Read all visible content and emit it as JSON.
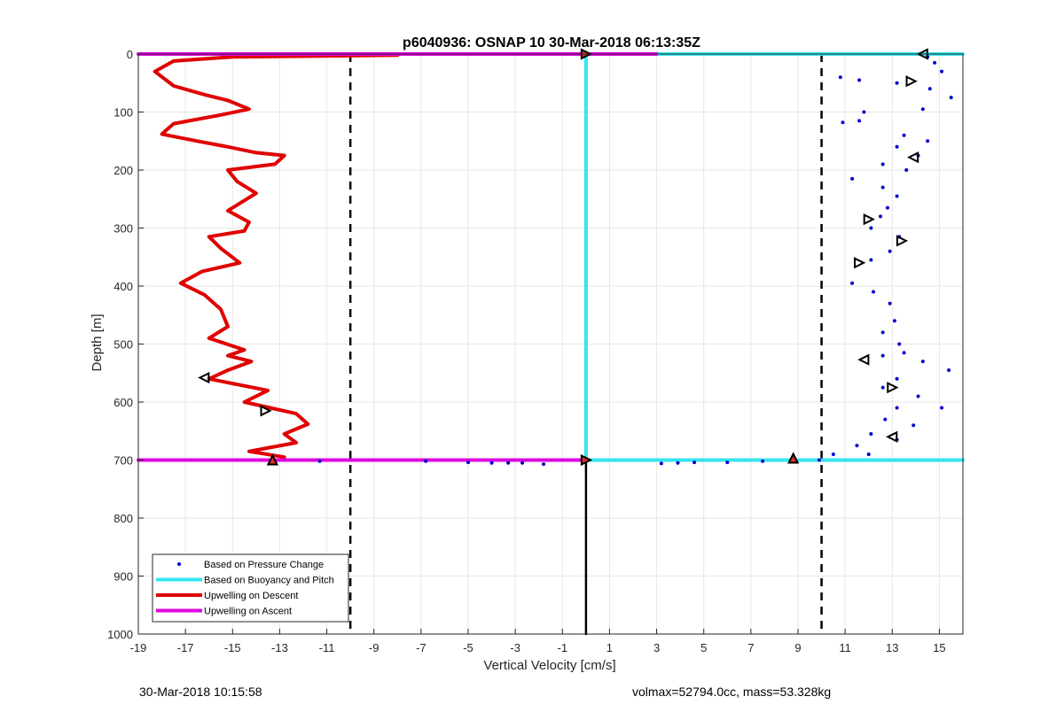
{
  "footer": {
    "timestamp": "30-Mar-2018 10:15:58",
    "stats": "volmax=52794.0cc, mass=53.328kg"
  },
  "chart_data": {
    "type": "scatter",
    "title": "p6040936: OSNAP 10 30-Mar-2018 06:13:35Z",
    "xlabel": "Vertical Velocity [cm/s]",
    "ylabel": "Depth [m]",
    "xlim": [
      -19,
      16
    ],
    "ylim": [
      0,
      1000
    ],
    "y_reversed": true,
    "grid": true,
    "xticks": [
      -19,
      -17,
      -15,
      -13,
      -11,
      -9,
      -7,
      -5,
      -3,
      -1,
      1,
      3,
      5,
      7,
      9,
      11,
      13,
      15
    ],
    "yticks": [
      0,
      100,
      200,
      300,
      400,
      500,
      600,
      700,
      800,
      900,
      1000
    ],
    "legend_position": "bottom-left",
    "legend": [
      {
        "label": "Based on Pressure Change",
        "style": "dot",
        "color": "#0000d0"
      },
      {
        "label": "Based on Buoyancy and Pitch",
        "style": "line",
        "color": "#33e5f0"
      },
      {
        "label": "Upwelling on Descent",
        "style": "line",
        "color": "#e00000"
      },
      {
        "label": "Upwelling on Ascent",
        "style": "line",
        "color": "#e000e0"
      }
    ],
    "reference_lines": [
      {
        "axis": "x",
        "value": -10,
        "style": "dashed",
        "color": "#000000"
      },
      {
        "axis": "x",
        "value": 10,
        "style": "dashed",
        "color": "#000000"
      }
    ],
    "series": [
      {
        "kind": "line",
        "color": "#e00000",
        "points": [
          [
            -8,
            2
          ],
          [
            -15,
            5
          ],
          [
            -17.5,
            12
          ],
          [
            -18.3,
            30
          ],
          [
            -17.5,
            55
          ],
          [
            -16.2,
            70
          ],
          [
            -15.2,
            80
          ],
          [
            -14.3,
            95
          ],
          [
            -15.5,
            105
          ],
          [
            -17.5,
            120
          ],
          [
            -18,
            138
          ],
          [
            -16.5,
            150
          ],
          [
            -15.2,
            160
          ],
          [
            -14,
            170
          ],
          [
            -12.8,
            175
          ],
          [
            -13.2,
            190
          ],
          [
            -15.2,
            200
          ],
          [
            -14.8,
            220
          ],
          [
            -14,
            240
          ],
          [
            -15.2,
            270
          ],
          [
            -14.3,
            290
          ],
          [
            -14.5,
            305
          ],
          [
            -16,
            315
          ],
          [
            -15.5,
            335
          ],
          [
            -14.7,
            360
          ],
          [
            -16.3,
            375
          ],
          [
            -17.2,
            395
          ],
          [
            -16.2,
            415
          ],
          [
            -15.5,
            440
          ],
          [
            -15.2,
            470
          ],
          [
            -16,
            490
          ],
          [
            -14.5,
            510
          ],
          [
            -15.2,
            520
          ],
          [
            -14.2,
            530
          ],
          [
            -15.2,
            545
          ],
          [
            -16,
            560
          ],
          [
            -13.5,
            580
          ],
          [
            -14.5,
            600
          ],
          [
            -12.3,
            620
          ],
          [
            -11.8,
            638
          ],
          [
            -12.8,
            655
          ],
          [
            -12.3,
            670
          ],
          [
            -14.3,
            685
          ],
          [
            -12.8,
            695
          ],
          [
            -13,
            700
          ]
        ]
      },
      {
        "kind": "line",
        "color": "#e000e0",
        "points": [
          [
            -19,
            0
          ],
          [
            3.1,
            0
          ]
        ]
      },
      {
        "kind": "line",
        "color": "#e000e0",
        "points": [
          [
            -19,
            700
          ],
          [
            0,
            700
          ]
        ]
      },
      {
        "kind": "line",
        "color": "#33e5f0",
        "points": [
          [
            3.1,
            0
          ],
          [
            16,
            0
          ]
        ]
      },
      {
        "kind": "line",
        "color": "#33e5f0",
        "points": [
          [
            0,
            700
          ],
          [
            16,
            700
          ]
        ]
      },
      {
        "kind": "line",
        "color": "#33e5f0",
        "points": [
          [
            0,
            0
          ],
          [
            0,
            700
          ]
        ]
      },
      {
        "kind": "line",
        "color": "#000000",
        "points": [
          [
            0,
            700
          ],
          [
            0,
            1000
          ]
        ]
      },
      {
        "kind": "points",
        "color": "#0000d0",
        "points": [
          [
            14.5,
            5
          ],
          [
            14.8,
            15
          ],
          [
            15.1,
            30
          ],
          [
            10.8,
            40
          ],
          [
            11.6,
            45
          ],
          [
            13.2,
            50
          ],
          [
            14.6,
            60
          ],
          [
            15.5,
            75
          ],
          [
            14.3,
            95
          ],
          [
            11.8,
            100
          ],
          [
            10.9,
            118
          ],
          [
            11.6,
            115
          ],
          [
            13.5,
            140
          ],
          [
            14.5,
            150
          ],
          [
            13.2,
            160
          ],
          [
            14.1,
            175
          ],
          [
            12.6,
            190
          ],
          [
            13.6,
            200
          ],
          [
            11.3,
            215
          ],
          [
            12.6,
            230
          ],
          [
            13.2,
            245
          ],
          [
            12.8,
            265
          ],
          [
            12.5,
            280
          ],
          [
            12.1,
            300
          ],
          [
            13.3,
            315
          ],
          [
            12.9,
            340
          ],
          [
            12.1,
            355
          ],
          [
            11.3,
            395
          ],
          [
            12.2,
            410
          ],
          [
            12.9,
            430
          ],
          [
            13.1,
            460
          ],
          [
            12.6,
            480
          ],
          [
            13.3,
            500
          ],
          [
            13.5,
            515
          ],
          [
            12.6,
            520
          ],
          [
            14.3,
            530
          ],
          [
            15.4,
            545
          ],
          [
            13.2,
            560
          ],
          [
            12.6,
            575
          ],
          [
            14.1,
            590
          ],
          [
            13.2,
            610
          ],
          [
            15.1,
            610
          ],
          [
            12.7,
            630
          ],
          [
            13.9,
            640
          ],
          [
            12.1,
            655
          ],
          [
            13.2,
            665
          ],
          [
            11.5,
            675
          ],
          [
            10.5,
            690
          ],
          [
            12,
            690
          ],
          [
            9.9,
            700
          ],
          [
            3.2,
            706
          ],
          [
            3.9,
            705
          ],
          [
            4.6,
            704
          ],
          [
            6,
            704
          ],
          [
            7.5,
            702
          ],
          [
            -6.8,
            702
          ],
          [
            -5,
            704
          ],
          [
            -4,
            705
          ],
          [
            -3.3,
            705
          ],
          [
            -2.7,
            705
          ],
          [
            -1.8,
            707
          ],
          [
            -11.3,
            702
          ]
        ]
      }
    ],
    "markers": [
      {
        "shape": "triangle-right",
        "x": 0,
        "y": 0
      },
      {
        "shape": "triangle-right",
        "x": 0,
        "y": 700
      },
      {
        "shape": "triangle-up",
        "x": -13.3,
        "y": 700
      },
      {
        "shape": "triangle-up",
        "x": 8.8,
        "y": 697
      },
      {
        "shape": "triangle-left",
        "x": 14.3,
        "y": 0
      },
      {
        "shape": "triangle-right",
        "x": 13.8,
        "y": 47
      },
      {
        "shape": "triangle-left",
        "x": 13.9,
        "y": 178
      },
      {
        "shape": "triangle-right",
        "x": 12,
        "y": 285
      },
      {
        "shape": "triangle-right",
        "x": 13.4,
        "y": 322
      },
      {
        "shape": "triangle-right",
        "x": 11.6,
        "y": 360
      },
      {
        "shape": "triangle-left",
        "x": 11.8,
        "y": 527
      },
      {
        "shape": "triangle-right",
        "x": 13,
        "y": 575
      },
      {
        "shape": "triangle-left",
        "x": 13,
        "y": 660
      },
      {
        "shape": "triangle-left",
        "x": -16.2,
        "y": 558
      },
      {
        "shape": "triangle-right",
        "x": -13.6,
        "y": 615
      }
    ]
  }
}
